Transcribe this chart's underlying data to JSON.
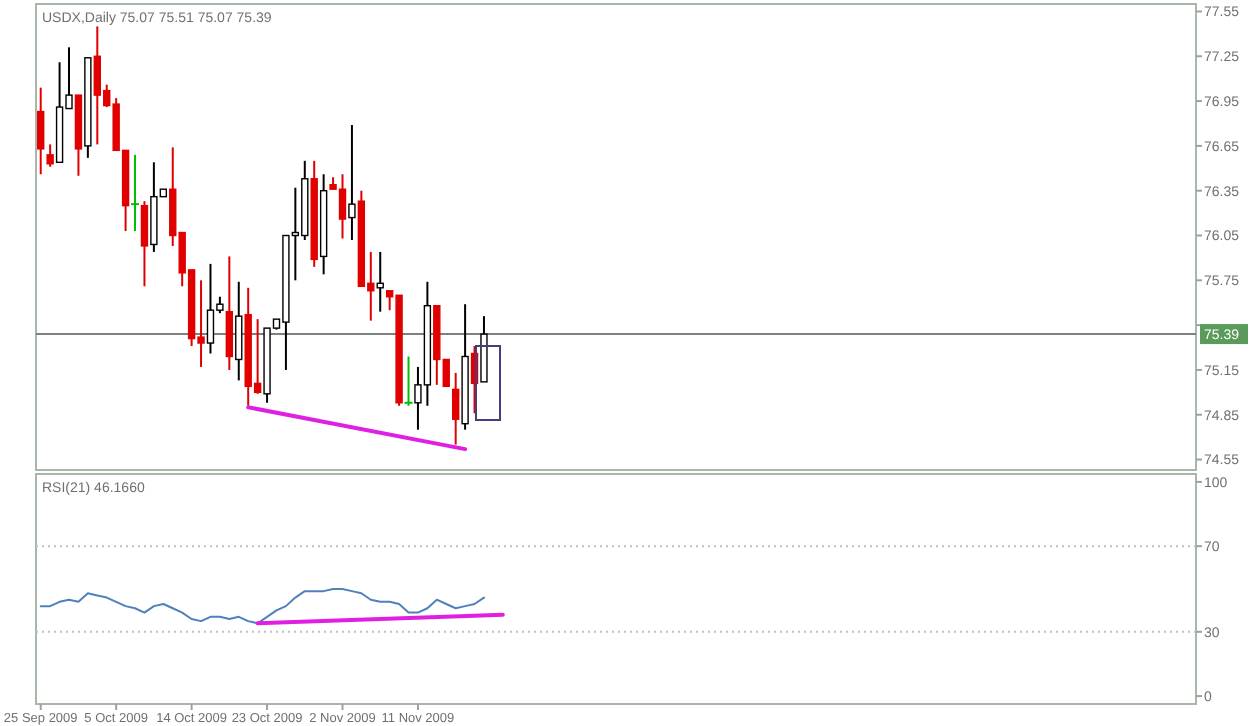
{
  "chart_data": [
    {
      "type": "candlestick",
      "title": "USDX,Daily 75.07 75.51 75.07 75.39",
      "tick_labels": "y",
      "categories": [
        null,
        null,
        null,
        null,
        null,
        null,
        null,
        null,
        null,
        null,
        null,
        null,
        null,
        null,
        null,
        null,
        null,
        null,
        null,
        null,
        null,
        null,
        null,
        null,
        null,
        null,
        null,
        null,
        null,
        null,
        null,
        null,
        null,
        null,
        null,
        null,
        null,
        null,
        null,
        null,
        null,
        null,
        null,
        null,
        null,
        null,
        null,
        null,
        null,
        null,
        null,
        null,
        null,
        null,
        null,
        null,
        null,
        null,
        null,
        null,
        null,
        null,
        null,
        null,
        null,
        null,
        null,
        null,
        null,
        null,
        null,
        null,
        null,
        null,
        null,
        null,
        null,
        null,
        null,
        null,
        null,
        null,
        null,
        null,
        null,
        null,
        null,
        null,
        null,
        null,
        null,
        null,
        null,
        null,
        null,
        null,
        null,
        null,
        null,
        null,
        null,
        null,
        null,
        null,
        null,
        null,
        null,
        null,
        null,
        null,
        null,
        null,
        null,
        null,
        null,
        null,
        null,
        null,
        null,
        null,
        null,
        null,
        null
      ],
      "ohlc": [
        [
          76.88,
          77.04,
          76.46,
          76.63
        ],
        [
          76.59,
          76.66,
          76.51,
          76.53
        ],
        [
          76.54,
          77.21,
          76.54,
          76.91
        ],
        [
          76.9,
          77.31,
          76.9,
          76.99
        ],
        [
          76.99,
          76.99,
          76.45,
          76.63
        ],
        [
          76.65,
          77.24,
          76.57,
          77.24
        ],
        [
          77.25,
          77.45,
          76.66,
          76.99
        ],
        [
          77.02,
          77.06,
          76.91,
          76.92
        ],
        [
          76.93,
          76.97,
          76.62,
          76.62
        ],
        [
          76.62,
          76.62,
          76.08,
          76.25
        ],
        [
          76.26,
          76.59,
          76.08,
          76.26
        ],
        [
          76.25,
          76.28,
          75.71,
          75.98
        ],
        [
          75.99,
          76.54,
          75.94,
          76.31
        ],
        [
          76.31,
          76.36,
          76.31,
          76.36
        ],
        [
          76.36,
          76.64,
          75.98,
          76.05
        ],
        [
          76.07,
          76.07,
          75.71,
          75.8
        ],
        [
          75.82,
          75.82,
          75.31,
          75.36
        ],
        [
          75.37,
          75.75,
          75.17,
          75.33
        ],
        [
          75.33,
          75.86,
          75.26,
          75.55
        ],
        [
          75.55,
          75.64,
          75.53,
          75.59
        ],
        [
          75.54,
          75.91,
          75.15,
          75.24
        ],
        [
          75.22,
          75.74,
          75.08,
          75.51
        ],
        [
          75.52,
          75.7,
          74.91,
          75.04
        ],
        [
          75.06,
          75.49,
          74.99,
          75.0
        ],
        [
          74.99,
          75.43,
          74.93,
          75.43
        ],
        [
          75.43,
          75.49,
          75.42,
          75.49
        ],
        [
          75.47,
          76.05,
          75.15,
          76.05
        ],
        [
          76.05,
          76.37,
          75.75,
          76.07
        ],
        [
          76.05,
          76.55,
          76.02,
          76.43
        ],
        [
          76.43,
          76.55,
          75.84,
          75.89
        ],
        [
          75.91,
          76.46,
          75.79,
          76.35
        ],
        [
          76.39,
          76.44,
          76.36,
          76.36
        ],
        [
          76.36,
          76.46,
          76.03,
          76.16
        ],
        [
          76.17,
          76.79,
          76.02,
          76.26
        ],
        [
          76.28,
          76.35,
          75.71,
          75.71
        ],
        [
          75.73,
          75.94,
          75.48,
          75.68
        ],
        [
          75.7,
          75.94,
          75.54,
          75.73
        ],
        [
          75.68,
          75.68,
          75.55,
          75.64
        ],
        [
          75.65,
          75.65,
          74.91,
          74.93
        ],
        [
          74.93,
          75.24,
          74.91,
          74.93
        ],
        [
          74.93,
          75.17,
          74.75,
          75.05
        ],
        [
          75.05,
          75.74,
          74.91,
          75.58
        ],
        [
          75.58,
          75.58,
          75.05,
          75.22
        ],
        [
          75.22,
          75.22,
          75.04,
          75.04
        ],
        [
          75.02,
          75.13,
          74.65,
          74.82
        ],
        [
          74.79,
          75.59,
          74.75,
          75.24
        ],
        [
          75.26,
          75.31,
          74.86,
          75.06
        ],
        [
          75.07,
          75.51,
          75.07,
          75.39
        ],
        null,
        null,
        null,
        null,
        null,
        null,
        null,
        null,
        null,
        null,
        null,
        null,
        null,
        null,
        null,
        null,
        null,
        null,
        null,
        null,
        null,
        null,
        null,
        null,
        null,
        null,
        null,
        null,
        null,
        null,
        null,
        null,
        null,
        null,
        null,
        null,
        null,
        null,
        null,
        null,
        null,
        null,
        null,
        null,
        null,
        null,
        null,
        null,
        null,
        null,
        null,
        null,
        null,
        null,
        null,
        null,
        null,
        null,
        null,
        null,
        null,
        null,
        null,
        null,
        null,
        null,
        null,
        null,
        null,
        null,
        null,
        null,
        null,
        null,
        null
      ],
      "colors": [
        "#e00000",
        "#e00000",
        "#ffffff",
        "#ffffff",
        "#e00000",
        "#ffffff",
        "#e00000",
        "#e00000",
        "#e00000",
        "#e00000",
        "#00c000",
        "#e00000",
        "#ffffff",
        "#ffffff",
        "#e00000",
        "#e00000",
        "#e00000",
        "#e00000",
        "#ffffff",
        "#ffffff",
        "#e00000",
        "#ffffff",
        "#e00000",
        "#e00000",
        "#ffffff",
        "#ffffff",
        "#ffffff",
        "#ffffff",
        "#ffffff",
        "#e00000",
        "#ffffff",
        "#e00000",
        "#e00000",
        "#ffffff",
        "#e00000",
        "#e00000",
        "#ffffff",
        "#e00000",
        "#e00000",
        "#00c000",
        "#ffffff",
        "#ffffff",
        "#e00000",
        "#e00000",
        "#e00000",
        "#ffffff",
        "#e00000",
        "#ffffff",
        null,
        null,
        null,
        null,
        null,
        null,
        null,
        null,
        null,
        null,
        null,
        null,
        null,
        null,
        null,
        null,
        null,
        null,
        null,
        null,
        null,
        null,
        null,
        null,
        null,
        null,
        null,
        null,
        null,
        null,
        null,
        null,
        null,
        null,
        null,
        null,
        null,
        null,
        null,
        null,
        null,
        null,
        null,
        null,
        null,
        null,
        null,
        null,
        null,
        null,
        null,
        null,
        null,
        null,
        null,
        null,
        null,
        null,
        null,
        null,
        null,
        null,
        null,
        null,
        null,
        null,
        null,
        null,
        null,
        null,
        null,
        null,
        null,
        null,
        null
      ],
      "series": [
        {
          "type": "line",
          "color": "#e020e0",
          "values": [
            null,
            null,
            null,
            null,
            null,
            null,
            null,
            null,
            null,
            null,
            null,
            null,
            null,
            null,
            null,
            null,
            null,
            null,
            null,
            null,
            null,
            null,
            74.9,
            null,
            null,
            null,
            null,
            null,
            null,
            null,
            null,
            null,
            null,
            null,
            null,
            null,
            null,
            null,
            null,
            null,
            null,
            null,
            null,
            null,
            null,
            74.62,
            null,
            null,
            null,
            null,
            null,
            null,
            null,
            null,
            null,
            null,
            null,
            null,
            null,
            null,
            null,
            null,
            null,
            null,
            null,
            null,
            null,
            null,
            null,
            null,
            null,
            null,
            null,
            null,
            null,
            null,
            null,
            null,
            null,
            null,
            null,
            null,
            null,
            null,
            null,
            null,
            null,
            null,
            null,
            null,
            null,
            null,
            null,
            null,
            null,
            null,
            null,
            null,
            null,
            null,
            null,
            null,
            null,
            null,
            null,
            null,
            null,
            null,
            null,
            null,
            null,
            null,
            null,
            null,
            null,
            null,
            null,
            null,
            null,
            null,
            null,
            null,
            null
          ]
        }
      ],
      "ylim": [
        74.48,
        77.6
      ],
      "yticks": [
        74.55,
        74.85,
        75.15,
        {
          "value": 75.45,
          "label": null
        },
        75.75,
        76.05,
        76.35,
        76.65,
        76.95,
        77.25,
        77.55
      ],
      "ref_lines": [
        {
          "axis": "y",
          "value": 75.39,
          "label": "75.39",
          "color": "#808080"
        }
      ]
    },
    {
      "type": "line",
      "title": "RSI(21) 46.1660",
      "categories": [
        "25 Sep 2009",
        null,
        null,
        null,
        null,
        null,
        null,
        null,
        "5 Oct 2009",
        null,
        null,
        null,
        null,
        null,
        null,
        null,
        "14 Oct 2009",
        null,
        null,
        null,
        null,
        null,
        null,
        null,
        "23 Oct 2009",
        null,
        null,
        null,
        null,
        null,
        null,
        null,
        "2 Nov 2009",
        null,
        null,
        null,
        null,
        null,
        null,
        null,
        "11 Nov 2009",
        null,
        null,
        null,
        null,
        null,
        null,
        null,
        null,
        null,
        null,
        null,
        null,
        null,
        null,
        null,
        null,
        null,
        null,
        null,
        null,
        null,
        null,
        null,
        null,
        null,
        null,
        null,
        null,
        null,
        null,
        null,
        null,
        null,
        null,
        null,
        null,
        null,
        null,
        null,
        null,
        null,
        null,
        null,
        null,
        null,
        null,
        null,
        null,
        null,
        null,
        null,
        null,
        null,
        null,
        null,
        null,
        null,
        null,
        null,
        null,
        null,
        null,
        null,
        null,
        null,
        null,
        null,
        null,
        null,
        null,
        null,
        null,
        null,
        null,
        null,
        null,
        null,
        null,
        null,
        null,
        null,
        null
      ],
      "series": [
        {
          "color": "#4f81bd",
          "values": [
            42,
            42,
            44,
            45,
            44,
            48,
            47,
            46,
            44,
            42,
            41,
            39,
            42,
            43,
            41,
            39,
            36,
            35,
            37,
            37,
            36,
            37,
            35,
            34,
            37,
            40,
            42,
            46,
            49,
            49,
            49,
            50,
            50,
            49,
            48,
            45,
            44,
            44,
            43,
            39,
            39,
            41,
            45,
            43,
            41,
            42,
            43,
            46,
            null,
            null,
            null,
            null,
            null,
            null,
            null,
            null,
            null,
            null,
            null,
            null,
            null,
            null,
            null,
            null,
            null,
            null,
            null,
            null,
            null,
            null,
            null,
            null,
            null,
            null,
            null,
            null,
            null,
            null,
            null,
            null,
            null,
            null,
            null,
            null,
            null,
            null,
            null,
            null,
            null,
            null,
            null,
            null,
            null,
            null,
            null,
            null,
            null,
            null,
            null,
            null,
            null,
            null,
            null,
            null,
            null,
            null,
            null,
            null,
            null,
            null,
            null,
            null,
            null,
            null,
            null,
            null,
            null,
            null,
            null,
            null,
            null,
            null,
            null
          ]
        },
        {
          "color": "#e020e0",
          "values": [
            null,
            null,
            null,
            null,
            null,
            null,
            null,
            null,
            null,
            null,
            null,
            null,
            null,
            null,
            null,
            null,
            null,
            null,
            null,
            null,
            null,
            null,
            null,
            34,
            null,
            null,
            null,
            null,
            null,
            null,
            null,
            null,
            null,
            null,
            null,
            null,
            null,
            null,
            null,
            null,
            null,
            null,
            null,
            null,
            null,
            null,
            null,
            null,
            null,
            38,
            null,
            null,
            null,
            null,
            null,
            null,
            null,
            null,
            null,
            null,
            null,
            null,
            null,
            null,
            null,
            null,
            null,
            null,
            null,
            null,
            null,
            null,
            null,
            null,
            null,
            null,
            null,
            null,
            null,
            null,
            null,
            null,
            null,
            null,
            null,
            null,
            null,
            null,
            null,
            null,
            null,
            null,
            null,
            null,
            null,
            null,
            null,
            null,
            null,
            null,
            null,
            null,
            null,
            null,
            null,
            null,
            null,
            null,
            null,
            null,
            null,
            null,
            null,
            null,
            null,
            null,
            null,
            null,
            null,
            null,
            null,
            null,
            null
          ]
        }
      ],
      "ylim": [
        -3.7,
        103.7
      ],
      "yticks": [
        0,
        30,
        70,
        100
      ],
      "ref_lines": [
        {
          "axis": "y",
          "value": 70,
          "color": "#c0c0c0",
          "line_style": "dotted"
        },
        {
          "axis": "y",
          "value": 30,
          "color": "#c0c0c0",
          "line_style": "dotted"
        }
      ]
    }
  ]
}
